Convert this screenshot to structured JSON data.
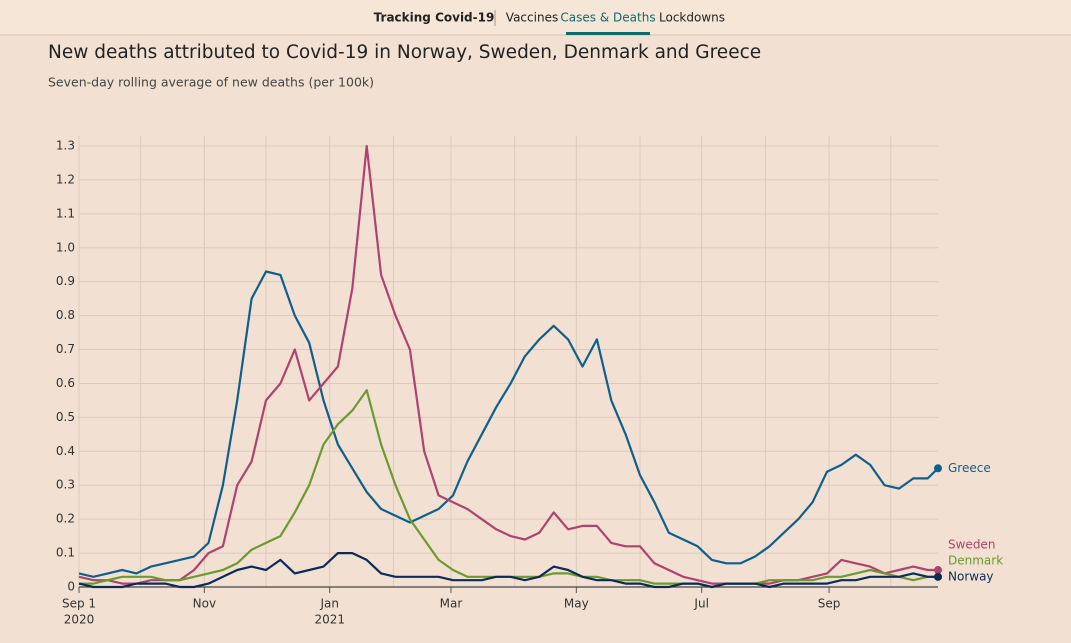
{
  "nav": {
    "title": "Tracking Covid-19",
    "items": [
      "Vaccines",
      "Cases & Deaths",
      "Lockdowns"
    ],
    "active": 1
  },
  "chart_data": {
    "type": "line",
    "title": "New deaths attributed to Covid-19 in Norway, Sweden, Denmark and Greece",
    "subtitle": "Seven-day rolling average of new deaths (per 100k)",
    "x": [
      "2020-09-01",
      "2020-09-08",
      "2020-09-15",
      "2020-09-22",
      "2020-09-29",
      "2020-10-06",
      "2020-10-13",
      "2020-10-20",
      "2020-10-27",
      "2020-11-03",
      "2020-11-10",
      "2020-11-17",
      "2020-11-24",
      "2020-12-01",
      "2020-12-08",
      "2020-12-15",
      "2020-12-22",
      "2020-12-29",
      "2021-01-05",
      "2021-01-12",
      "2021-01-19",
      "2021-01-26",
      "2021-02-02",
      "2021-02-09",
      "2021-02-16",
      "2021-02-23",
      "2021-03-02",
      "2021-03-09",
      "2021-03-16",
      "2021-03-23",
      "2021-03-30",
      "2021-04-06",
      "2021-04-13",
      "2021-04-20",
      "2021-04-27",
      "2021-05-04",
      "2021-05-11",
      "2021-05-18",
      "2021-05-25",
      "2021-06-01",
      "2021-06-08",
      "2021-06-15",
      "2021-06-22",
      "2021-06-29",
      "2021-07-06",
      "2021-07-13",
      "2021-07-20",
      "2021-07-27",
      "2021-08-03",
      "2021-08-10",
      "2021-08-17",
      "2021-08-24",
      "2021-08-31",
      "2021-09-07",
      "2021-09-14",
      "2021-09-21",
      "2021-09-28",
      "2021-10-05",
      "2021-10-12",
      "2021-10-19",
      "2021-10-24"
    ],
    "series": [
      {
        "name": "Greece",
        "color": "#0f5f8d",
        "values": [
          0.04,
          0.03,
          0.04,
          0.05,
          0.04,
          0.06,
          0.07,
          0.08,
          0.09,
          0.13,
          0.3,
          0.55,
          0.85,
          0.93,
          0.92,
          0.8,
          0.72,
          0.55,
          0.42,
          0.35,
          0.28,
          0.23,
          0.21,
          0.19,
          0.21,
          0.23,
          0.27,
          0.37,
          0.45,
          0.53,
          0.6,
          0.68,
          0.73,
          0.77,
          0.73,
          0.65,
          0.73,
          0.55,
          0.45,
          0.33,
          0.25,
          0.16,
          0.14,
          0.12,
          0.08,
          0.07,
          0.07,
          0.09,
          0.12,
          0.16,
          0.2,
          0.25,
          0.34,
          0.36,
          0.39,
          0.36,
          0.3,
          0.29,
          0.32,
          0.32,
          0.35
        ]
      },
      {
        "name": "Sweden",
        "color": "#b0426f",
        "values": [
          0.03,
          0.02,
          0.02,
          0.01,
          0.01,
          0.02,
          0.02,
          0.02,
          0.05,
          0.1,
          0.12,
          0.3,
          0.37,
          0.55,
          0.6,
          0.7,
          0.55,
          0.6,
          0.65,
          0.88,
          1.3,
          0.92,
          0.8,
          0.7,
          0.4,
          0.27,
          0.25,
          0.23,
          0.2,
          0.17,
          0.15,
          0.14,
          0.16,
          0.22,
          0.17,
          0.18,
          0.18,
          0.13,
          0.12,
          0.12,
          0.07,
          0.05,
          0.03,
          0.02,
          0.01,
          0.01,
          0.01,
          0.01,
          0.01,
          0.02,
          0.02,
          0.03,
          0.04,
          0.08,
          0.07,
          0.06,
          0.04,
          0.05,
          0.06,
          0.05,
          0.05
        ]
      },
      {
        "name": "Denmark",
        "color": "#6b9a2f",
        "values": [
          0.01,
          0.01,
          0.02,
          0.03,
          0.03,
          0.03,
          0.02,
          0.02,
          0.03,
          0.04,
          0.05,
          0.07,
          0.11,
          0.13,
          0.15,
          0.22,
          0.3,
          0.42,
          0.48,
          0.52,
          0.58,
          0.42,
          0.3,
          0.2,
          0.14,
          0.08,
          0.05,
          0.03,
          0.03,
          0.03,
          0.03,
          0.03,
          0.03,
          0.04,
          0.04,
          0.03,
          0.03,
          0.02,
          0.02,
          0.02,
          0.01,
          0.01,
          0.01,
          0.01,
          0,
          0.01,
          0.01,
          0.01,
          0.02,
          0.02,
          0.02,
          0.02,
          0.03,
          0.03,
          0.04,
          0.05,
          0.04,
          0.03,
          0.02,
          0.03,
          0.03
        ]
      },
      {
        "name": "Norway",
        "color": "#0b2c5a",
        "values": [
          0.01,
          0,
          0,
          0,
          0.01,
          0.01,
          0.01,
          0,
          0,
          0.01,
          0.03,
          0.05,
          0.06,
          0.05,
          0.08,
          0.04,
          0.05,
          0.06,
          0.1,
          0.1,
          0.08,
          0.04,
          0.03,
          0.03,
          0.03,
          0.03,
          0.02,
          0.02,
          0.02,
          0.03,
          0.03,
          0.02,
          0.03,
          0.06,
          0.05,
          0.03,
          0.02,
          0.02,
          0.01,
          0.01,
          0,
          0,
          0.01,
          0.01,
          0,
          0.01,
          0.01,
          0.01,
          0,
          0.01,
          0.01,
          0.01,
          0.01,
          0.02,
          0.02,
          0.03,
          0.03,
          0.03,
          0.04,
          0.03,
          0.03
        ]
      }
    ],
    "xlim": [
      "2020-09-01",
      "2021-10-24"
    ],
    "xticks": [
      {
        "value": "2020-09-01",
        "label": "Sep 1",
        "year": "2020"
      },
      {
        "value": "2020-11-01",
        "label": "Nov"
      },
      {
        "value": "2021-01-01",
        "label": "Jan",
        "year": "2021"
      },
      {
        "value": "2021-03-01",
        "label": "Mar"
      },
      {
        "value": "2021-05-01",
        "label": "May"
      },
      {
        "value": "2021-07-01",
        "label": "Jul"
      },
      {
        "value": "2021-09-01",
        "label": "Sep"
      }
    ],
    "xminor": [
      "2020-10-01",
      "2020-12-01",
      "2021-02-01",
      "2021-04-01",
      "2021-06-01",
      "2021-08-01",
      "2021-10-01"
    ],
    "ylim": [
      0,
      1.3
    ],
    "yticks": [
      0,
      0.1,
      0.2,
      0.3,
      0.4,
      0.5,
      0.6,
      0.7,
      0.8,
      0.9,
      {
        "value": 1,
        "label": "1.0"
      },
      1.1,
      1.2,
      1.3
    ],
    "grid": true
  }
}
